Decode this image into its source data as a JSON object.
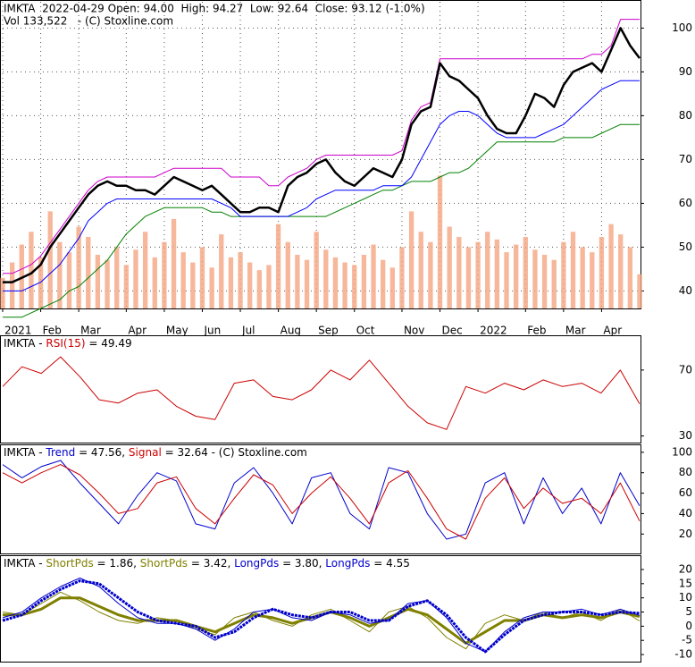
{
  "chart_data": [
    {
      "type": "line",
      "title": "IMKTA  2022-04-29 Open: 94.00  High: 94.27  Low: 92.64  Close: 93.12 (-1.0%)",
      "subtitle": "Vol 133,522   - (C) Stoxline.com",
      "xlim": [
        0,
        67
      ],
      "xticks": [
        {
          "value": 0,
          "label": "2021"
        },
        {
          "value": 4,
          "label": "Feb"
        },
        {
          "value": 8,
          "label": "Mar"
        },
        {
          "value": 13,
          "label": "Apr"
        },
        {
          "value": 17,
          "label": "May"
        },
        {
          "value": 21,
          "label": "Jun"
        },
        {
          "value": 25,
          "label": "Jul"
        },
        {
          "value": 29,
          "label": "Aug"
        },
        {
          "value": 33,
          "label": "Sep"
        },
        {
          "value": 37,
          "label": "Oct"
        },
        {
          "value": 42,
          "label": "Nov"
        },
        {
          "value": 46,
          "label": "Dec"
        },
        {
          "value": 50,
          "label": "2022"
        },
        {
          "value": 55,
          "label": "Feb"
        },
        {
          "value": 59,
          "label": "Mar"
        },
        {
          "value": 63,
          "label": "Apr"
        }
      ],
      "ylim": [
        36,
        106
      ],
      "yticks": [
        40,
        50,
        60,
        70,
        80,
        90,
        100
      ],
      "y2lim": [
        0,
        1200000
      ],
      "grid": true,
      "series": [
        {
          "color": "#f4a582",
          "style": "bar",
          "axis": "y2",
          "values": [
            120000,
            180000,
            250000,
            300000,
            200000,
            380000,
            260000,
            220000,
            320000,
            280000,
            210000,
            190000,
            240000,
            170000,
            230000,
            300000,
            200000,
            260000,
            350000,
            220000,
            180000,
            240000,
            160000,
            290000,
            200000,
            220000,
            180000,
            150000,
            170000,
            330000,
            260000,
            210000,
            190000,
            300000,
            230000,
            200000,
            180000,
            170000,
            210000,
            250000,
            190000,
            160000,
            240000,
            380000,
            300000,
            260000,
            520000,
            320000,
            280000,
            240000,
            260000,
            300000,
            270000,
            220000,
            250000,
            280000,
            230000,
            210000,
            190000,
            260000,
            300000,
            240000,
            220000,
            280000,
            330000,
            290000,
            240000,
            133522
          ]
        },
        {
          "color": "#008000",
          "width": 1,
          "values": [
            34,
            34,
            34,
            35,
            36,
            37,
            38,
            40,
            41,
            43,
            45,
            47,
            50,
            53,
            55,
            57,
            58,
            59,
            59,
            59,
            59,
            59,
            58,
            58,
            57,
            57,
            57,
            57,
            57,
            57,
            57,
            57,
            57,
            57,
            57,
            58,
            59,
            60,
            61,
            62,
            63,
            63,
            64,
            65,
            65,
            65,
            66,
            67,
            67,
            68,
            70,
            72,
            74,
            74,
            74,
            74,
            74,
            74,
            74,
            75,
            75,
            75,
            75,
            76,
            77,
            78,
            78,
            78
          ]
        },
        {
          "color": "#0000ff",
          "width": 1,
          "values": [
            40,
            40,
            40,
            41,
            42,
            44,
            46,
            49,
            52,
            56,
            58,
            60,
            61,
            61,
            61,
            61,
            61,
            61,
            61,
            61,
            61,
            61,
            61,
            60,
            59,
            57,
            57,
            57,
            57,
            57,
            57,
            58,
            59,
            61,
            62,
            63,
            63,
            63,
            63,
            63,
            64,
            64,
            64,
            66,
            70,
            74,
            78,
            80,
            81,
            81,
            80,
            78,
            76,
            75,
            75,
            75,
            75,
            76,
            77,
            78,
            80,
            82,
            84,
            86,
            87,
            88,
            88,
            88
          ]
        },
        {
          "color": "#cc00cc",
          "width": 1,
          "values": [
            44,
            44,
            45,
            46,
            48,
            51,
            54,
            57,
            60,
            63,
            65,
            66,
            66,
            66,
            66,
            66,
            66,
            67,
            68,
            68,
            68,
            68,
            68,
            68,
            66,
            66,
            66,
            66,
            64,
            64,
            66,
            67,
            68,
            70,
            71,
            71,
            71,
            71,
            71,
            71,
            71,
            71,
            72,
            79,
            82,
            83,
            93,
            93,
            93,
            93,
            93,
            93,
            93,
            93,
            93,
            93,
            93,
            93,
            93,
            93,
            93,
            93,
            94,
            94,
            96,
            102,
            102,
            102
          ]
        },
        {
          "color": "#000000",
          "width": 2.5,
          "values": [
            42,
            42,
            43,
            44,
            46,
            50,
            53,
            56,
            59,
            62,
            64,
            65,
            64,
            64,
            63,
            63,
            62,
            64,
            66,
            65,
            64,
            63,
            64,
            62,
            60,
            58,
            58,
            59,
            59,
            58,
            64,
            66,
            67,
            69,
            70,
            67,
            65,
            64,
            66,
            68,
            67,
            66,
            70,
            78,
            81,
            82,
            92,
            89,
            88,
            86,
            84,
            80,
            77,
            76,
            76,
            80,
            85,
            84,
            82,
            87,
            90,
            91,
            92,
            90,
            95,
            100,
            96,
            93.12
          ]
        }
      ]
    },
    {
      "type": "line",
      "title_parts": [
        {
          "text": "IMKTA - ",
          "color": "#000000"
        },
        {
          "text": "RSI(15)",
          "color": "#cc0000"
        },
        {
          "text": " = 49.49",
          "color": "#000000"
        }
      ],
      "xlim": [
        0,
        33
      ],
      "ylim": [
        26,
        90
      ],
      "yticks": [
        30,
        70
      ],
      "series": [
        {
          "color": "#cc0000",
          "width": 1,
          "values": [
            60,
            72,
            68,
            78,
            66,
            52,
            50,
            56,
            58,
            48,
            42,
            40,
            62,
            64,
            54,
            52,
            58,
            70,
            64,
            76,
            62,
            48,
            38,
            34,
            60,
            56,
            62,
            58,
            64,
            60,
            62,
            56,
            70,
            49.49
          ]
        }
      ]
    },
    {
      "type": "line",
      "title_parts": [
        {
          "text": "IMKTA - ",
          "color": "#000000"
        },
        {
          "text": "Trend",
          "color": "#0000cc"
        },
        {
          "text": " = 47.56, ",
          "color": "#000000"
        },
        {
          "text": "Signal",
          "color": "#cc0000"
        },
        {
          "text": " = 32.64 - (C) Stoxline.com",
          "color": "#000000"
        }
      ],
      "xlim": [
        0,
        33
      ],
      "ylim": [
        1,
        106
      ],
      "yticks": [
        20,
        40,
        60,
        80,
        100
      ],
      "series": [
        {
          "color": "#0000cc",
          "width": 1,
          "values": [
            88,
            75,
            86,
            92,
            70,
            50,
            30,
            58,
            80,
            72,
            30,
            25,
            70,
            85,
            60,
            30,
            75,
            80,
            40,
            25,
            85,
            80,
            40,
            15,
            20,
            70,
            80,
            30,
            75,
            40,
            65,
            30,
            80,
            47.56
          ]
        },
        {
          "color": "#cc0000",
          "width": 1,
          "values": [
            80,
            70,
            80,
            88,
            78,
            60,
            40,
            45,
            70,
            76,
            45,
            30,
            55,
            78,
            68,
            40,
            60,
            76,
            55,
            30,
            70,
            82,
            55,
            25,
            15,
            55,
            75,
            45,
            65,
            50,
            55,
            40,
            70,
            32.64
          ]
        }
      ]
    },
    {
      "type": "line",
      "title_parts": [
        {
          "text": "IMKTA - ",
          "color": "#000000"
        },
        {
          "text": "ShortPds",
          "color": "#808000"
        },
        {
          "text": " = 1.86, ",
          "color": "#000000"
        },
        {
          "text": "ShortPds",
          "color": "#808000"
        },
        {
          "text": " = 3.42, ",
          "color": "#000000"
        },
        {
          "text": "LongPds",
          "color": "#0000cc"
        },
        {
          "text": " = 3.80, ",
          "color": "#000000"
        },
        {
          "text": "LongPds",
          "color": "#0000cc"
        },
        {
          "text": " = 4.55",
          "color": "#000000"
        }
      ],
      "xlim": [
        0,
        33
      ],
      "ylim": [
        -12.5,
        24.4
      ],
      "yticks": [
        -10,
        -5,
        0,
        5,
        10,
        15,
        20
      ],
      "series": [
        {
          "color": "#808000",
          "width": 1,
          "values": [
            5,
            4,
            8,
            12,
            9,
            5,
            2,
            1,
            3,
            2,
            -1,
            -3,
            3,
            5,
            2,
            0,
            4,
            6,
            2,
            -2,
            5,
            7,
            3,
            -4,
            -8,
            1,
            4,
            2,
            5,
            3,
            5,
            2,
            6,
            1.86
          ]
        },
        {
          "color": "#808000",
          "width": 3,
          "values": [
            4,
            4,
            6,
            10,
            10,
            7,
            4,
            2,
            2,
            2,
            0,
            -2,
            1,
            4,
            3,
            1,
            3,
            5,
            3,
            0,
            3,
            6,
            4,
            -1,
            -6,
            -2,
            2,
            2,
            4,
            3,
            4,
            3,
            5,
            3.42
          ]
        },
        {
          "color": "#0000cc",
          "width": 1,
          "values": [
            3,
            5,
            10,
            14,
            17,
            14,
            8,
            3,
            1,
            1,
            -1,
            -5,
            -1,
            5,
            6,
            3,
            2,
            5,
            4,
            1,
            2,
            8,
            9,
            3,
            -6,
            -9,
            -2,
            3,
            5,
            5,
            6,
            4,
            6,
            3.8
          ]
        },
        {
          "color": "#0000cc",
          "width": 3,
          "dash": true,
          "values": [
            2,
            4,
            9,
            13,
            16,
            15,
            10,
            5,
            2,
            1,
            0,
            -4,
            -2,
            3,
            6,
            4,
            3,
            5,
            5,
            2,
            2,
            7,
            9,
            4,
            -4,
            -9,
            -3,
            2,
            4,
            5,
            5,
            4,
            5,
            4.55
          ]
        }
      ]
    }
  ]
}
